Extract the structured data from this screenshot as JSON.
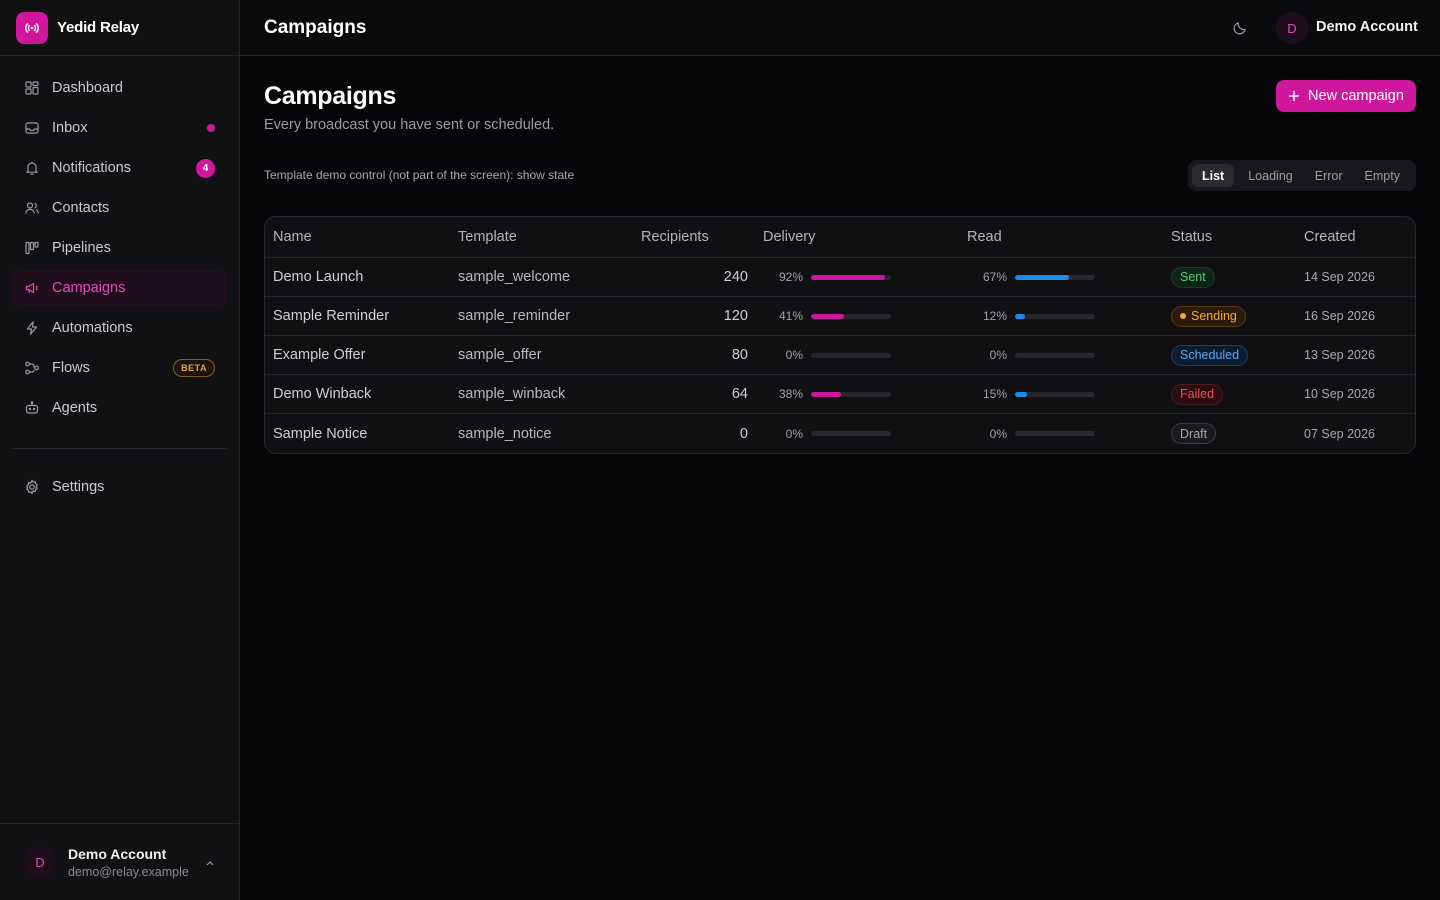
{
  "app": {
    "name": "Yedid Relay"
  },
  "header": {
    "title": "Campaigns",
    "account_initial": "D",
    "account_name": "Demo Account"
  },
  "sidebar": {
    "items": [
      {
        "label": "Dashboard",
        "icon": "dashboard-icon"
      },
      {
        "label": "Inbox",
        "icon": "inbox-icon"
      },
      {
        "label": "Notifications",
        "icon": "bell-icon",
        "count": "4"
      },
      {
        "label": "Contacts",
        "icon": "users-icon"
      },
      {
        "label": "Pipelines",
        "icon": "pipeline-icon"
      },
      {
        "label": "Campaigns",
        "icon": "megaphone-icon",
        "active": true
      },
      {
        "label": "Automations",
        "icon": "bolt-icon"
      },
      {
        "label": "Flows",
        "icon": "flow-icon",
        "badge": "BETA"
      },
      {
        "label": "Agents",
        "icon": "bot-icon"
      }
    ],
    "settings": {
      "label": "Settings",
      "icon": "gear-icon"
    },
    "user": {
      "initial": "D",
      "name": "Demo Account",
      "email": "demo@relay.example"
    }
  },
  "main": {
    "title": "Campaigns",
    "subtitle": "Every broadcast you have sent or scheduled.",
    "new_button": "New campaign",
    "demo_label": "Template demo control (not part of the screen): show state",
    "states": [
      "List",
      "Loading",
      "Error",
      "Empty"
    ],
    "active_state": "List"
  },
  "table": {
    "columns": [
      "Name",
      "Template",
      "Recipients",
      "Delivery",
      "Read",
      "Status",
      "Created"
    ],
    "rows": [
      {
        "name": "Demo Launch",
        "template": "sample_welcome",
        "recipients": "240",
        "delivery": 92,
        "delivery_label": "92%",
        "read": 67,
        "read_label": "67%",
        "status": "Sent",
        "status_kind": "sent",
        "created": "14 Sep 2026"
      },
      {
        "name": "Sample Reminder",
        "template": "sample_reminder",
        "recipients": "120",
        "delivery": 41,
        "delivery_label": "41%",
        "read": 12,
        "read_label": "12%",
        "status": "Sending",
        "status_kind": "sending",
        "created": "16 Sep 2026"
      },
      {
        "name": "Example Offer",
        "template": "sample_offer",
        "recipients": "80",
        "delivery": 0,
        "delivery_label": "0%",
        "read": 0,
        "read_label": "0%",
        "status": "Scheduled",
        "status_kind": "scheduled",
        "created": "13 Sep 2026"
      },
      {
        "name": "Demo Winback",
        "template": "sample_winback",
        "recipients": "64",
        "delivery": 38,
        "delivery_label": "38%",
        "read": 15,
        "read_label": "15%",
        "status": "Failed",
        "status_kind": "failed",
        "created": "10 Sep 2026"
      },
      {
        "name": "Sample Notice",
        "template": "sample_notice",
        "recipients": "0",
        "delivery": 0,
        "delivery_label": "0%",
        "read": 0,
        "read_label": "0%",
        "status": "Draft",
        "status_kind": "draft",
        "created": "07 Sep 2026"
      }
    ]
  },
  "colors": {
    "accent": "#d1169e",
    "read_bar": "#1a8cf0",
    "background": "#07070a"
  }
}
